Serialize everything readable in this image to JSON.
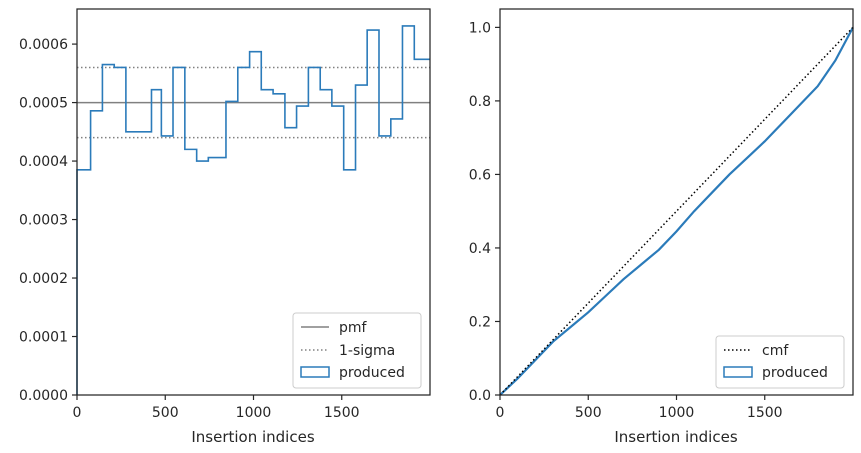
{
  "chart_data": [
    {
      "type": "line",
      "subtype": "step-histogram",
      "xlabel": "Insertion indices",
      "ylabel": "",
      "xlim": [
        0,
        2000
      ],
      "ylim": [
        0,
        0.00066
      ],
      "xticks": [
        0,
        500,
        1000,
        1500
      ],
      "xtick_labels": [
        "0",
        "500",
        "1000",
        "1500"
      ],
      "yticks": [
        0,
        0.0001,
        0.0002,
        0.0003,
        0.0004,
        0.0005,
        0.0006
      ],
      "ytick_labels": [
        "0.0000",
        "0.0001",
        "0.0002",
        "0.0003",
        "0.0004",
        "0.0005",
        "0.0006"
      ],
      "grid": false,
      "legend_position": "bottom-right",
      "reference_lines": [
        {
          "name": "pmf",
          "y": 0.0005,
          "style": "solid",
          "color": "#808080"
        },
        {
          "name": "1-sigma",
          "y": 0.00056,
          "style": "dotted",
          "color": "#808080"
        },
        {
          "name": "1-sigma",
          "y": 0.00044,
          "style": "dotted",
          "color": "#808080",
          "legend": false
        }
      ],
      "series": [
        {
          "name": "produced",
          "color": "#2b7bba",
          "bin_edges": [
            0,
            77,
            144,
            211,
            277,
            422,
            478,
            544,
            611,
            678,
            744,
            844,
            911,
            978,
            1044,
            1111,
            1178,
            1244,
            1311,
            1378,
            1444,
            1511,
            1578,
            1644,
            1711,
            1778,
            1844,
            1911,
            1978,
            2000
          ],
          "values": [
            0.000385,
            0.000486,
            0.000565,
            0.00056,
            0.00045,
            0.000522,
            0.000443,
            0.00056,
            0.00042,
            0.0004,
            0.000406,
            0.000502,
            0.00056,
            0.000587,
            0.000522,
            0.000515,
            0.000457,
            0.000494,
            0.00056,
            0.000522,
            0.000494,
            0.000385,
            0.00053,
            0.000624,
            0.000443,
            0.000472,
            0.000631,
            0.000574,
            0.000574
          ]
        }
      ]
    },
    {
      "type": "line",
      "xlabel": "Insertion indices",
      "ylabel": "",
      "xlim": [
        0,
        2000
      ],
      "ylim": [
        0,
        1.05
      ],
      "xticks": [
        0,
        500,
        1000,
        1500
      ],
      "xtick_labels": [
        "0",
        "500",
        "1000",
        "1500"
      ],
      "yticks": [
        0,
        0.2,
        0.4,
        0.6,
        0.8,
        1.0
      ],
      "ytick_labels": [
        "0.0",
        "0.2",
        "0.4",
        "0.6",
        "0.8",
        "1.0"
      ],
      "grid": false,
      "legend_position": "bottom-right",
      "series": [
        {
          "name": "cmf",
          "style": "dotted",
          "color": "#000000",
          "x": [
            0,
            2000
          ],
          "y": [
            0,
            1.0
          ]
        },
        {
          "name": "produced",
          "style": "step",
          "color": "#2b7bba",
          "x": [
            0,
            100,
            200,
            300,
            400,
            500,
            600,
            700,
            800,
            900,
            1000,
            1100,
            1200,
            1300,
            1400,
            1500,
            1600,
            1700,
            1800,
            1900,
            2000
          ],
          "y": [
            0,
            0.045,
            0.095,
            0.145,
            0.185,
            0.225,
            0.27,
            0.315,
            0.355,
            0.395,
            0.445,
            0.5,
            0.55,
            0.6,
            0.645,
            0.69,
            0.74,
            0.79,
            0.84,
            0.91,
            1.0
          ]
        }
      ]
    }
  ]
}
